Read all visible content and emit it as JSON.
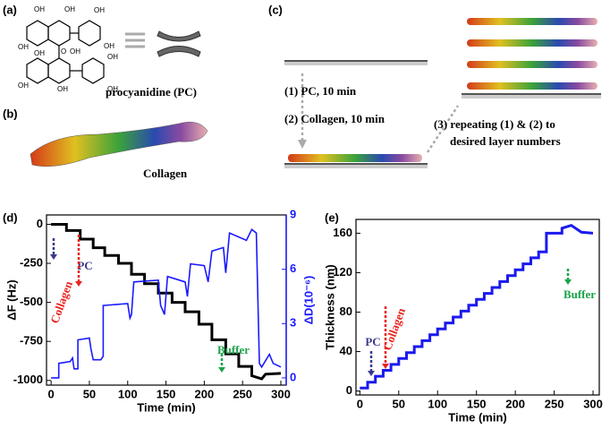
{
  "diagram": {
    "panels": [
      "(a)",
      "(b)",
      "(c)"
    ],
    "oh": "OH",
    "o": "O",
    "pc_label": "procyanidine (PC)",
    "collagen_label": "Collagen",
    "steps": [
      "(1) PC, 10 min",
      "(2) Collagen, 10 min"
    ],
    "repeat": [
      "(3) repeating (1) & (2) to",
      "desired layer numbers"
    ]
  },
  "chart_data": [
    {
      "type": "line",
      "label": "(d)",
      "xlabel": "Time (min)",
      "ylabel": "ΔF (Hz)",
      "y2label": "ΔD(10⁻⁶)",
      "xlim": [
        -6,
        307
      ],
      "xticks": [
        0,
        50,
        100,
        150,
        200,
        250,
        300
      ],
      "ylim": [
        -1030,
        60
      ],
      "yticks": [
        0,
        -250,
        -500,
        -750,
        -1000
      ],
      "y2lim": [
        -0.4,
        9
      ],
      "y2ticks": [
        0,
        3,
        6,
        9
      ],
      "annotations": [
        {
          "text": "PC",
          "color": "#3a3a8c"
        },
        {
          "text": "Collagen",
          "color": "#e8231f"
        },
        {
          "text": "Buffer",
          "color": "#1aa34a"
        }
      ],
      "series": [
        {
          "name": "ΔF",
          "color": "#000000",
          "axis": "y",
          "x": [
            0,
            20,
            20,
            38,
            38,
            55,
            55,
            70,
            70,
            88,
            88,
            105,
            105,
            122,
            122,
            140,
            140,
            158,
            158,
            175,
            175,
            193,
            193,
            210,
            210,
            228,
            228,
            245,
            245,
            262,
            262,
            275,
            280,
            300
          ],
          "values": [
            0,
            0,
            -40,
            -40,
            -95,
            -95,
            -150,
            -150,
            -200,
            -200,
            -250,
            -250,
            -320,
            -320,
            -380,
            -380,
            -440,
            -440,
            -500,
            -500,
            -560,
            -560,
            -640,
            -640,
            -740,
            -740,
            -830,
            -830,
            -910,
            -910,
            -970,
            -990,
            -960,
            -955
          ]
        },
        {
          "name": "ΔD",
          "color": "#1a1aff",
          "axis": "y2",
          "x": [
            0,
            10,
            10,
            25,
            28,
            30,
            35,
            35,
            50,
            52,
            55,
            65,
            68,
            68,
            100,
            103,
            105,
            108,
            140,
            143,
            148,
            152,
            175,
            178,
            182,
            200,
            205,
            210,
            225,
            228,
            233,
            255,
            262,
            268,
            272,
            275,
            285,
            290,
            300
          ],
          "values": [
            0,
            0,
            0.8,
            0.9,
            1.1,
            0.5,
            0.5,
            2.1,
            2.2,
            1.6,
            1.0,
            1.0,
            1.2,
            4.0,
            4.1,
            3.3,
            3.5,
            5.3,
            5.4,
            4.0,
            3.5,
            5.6,
            5.3,
            4.5,
            6.3,
            6.2,
            5.3,
            7.0,
            7.2,
            5.8,
            8.0,
            7.6,
            8.2,
            8.0,
            0.8,
            0.6,
            1.3,
            0.8,
            0.6
          ]
        }
      ]
    },
    {
      "type": "line",
      "label": "(e)",
      "xlabel": "Time (min)",
      "ylabel": "Thickness (nm)",
      "xlim": [
        -5,
        308
      ],
      "xticks": [
        0,
        50,
        100,
        150,
        200,
        250,
        300
      ],
      "ylim": [
        -4,
        174
      ],
      "yticks": [
        0,
        40,
        80,
        120,
        160
      ],
      "annotations": [
        {
          "text": "PC",
          "color": "#3a3a8c"
        },
        {
          "text": "Collagen",
          "color": "#e8231f"
        },
        {
          "text": "Buffer",
          "color": "#1aa34a"
        }
      ],
      "series": [
        {
          "name": "Thickness",
          "color": "#1a1aee",
          "axis": "y",
          "x": [
            0,
            10,
            10,
            20,
            20,
            30,
            30,
            40,
            40,
            50,
            50,
            60,
            60,
            70,
            70,
            80,
            80,
            90,
            90,
            100,
            100,
            110,
            110,
            120,
            120,
            130,
            130,
            140,
            140,
            150,
            150,
            160,
            160,
            170,
            170,
            180,
            180,
            190,
            190,
            200,
            200,
            210,
            210,
            220,
            220,
            230,
            230,
            240,
            240,
            260,
            260,
            272,
            285,
            300
          ],
          "values": [
            3,
            3,
            9,
            9,
            15,
            15,
            21,
            21,
            27,
            27,
            33,
            33,
            39,
            39,
            45,
            45,
            51,
            51,
            57,
            57,
            63,
            63,
            69,
            69,
            75,
            75,
            81,
            81,
            87,
            87,
            93,
            93,
            99,
            99,
            105,
            105,
            111,
            111,
            117,
            117,
            123,
            123,
            129,
            129,
            135,
            135,
            141,
            141,
            160,
            160,
            165,
            168,
            161,
            160
          ]
        }
      ]
    }
  ]
}
